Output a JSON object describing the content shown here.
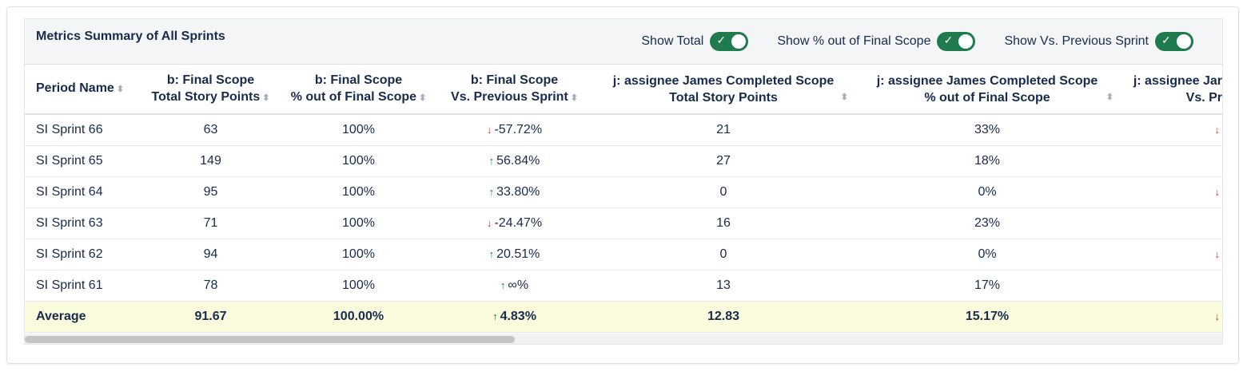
{
  "header": {
    "title": "Metrics Summary of All Sprints",
    "toggles": [
      {
        "label": "Show Total",
        "on": true
      },
      {
        "label": "Show % out of Final Scope",
        "on": true
      },
      {
        "label": "Show Vs. Previous Sprint",
        "on": true
      }
    ]
  },
  "table": {
    "columns": [
      [
        "Period Name"
      ],
      [
        "b: Final Scope",
        "Total Story Points"
      ],
      [
        "b: Final Scope",
        "% out of Final Scope"
      ],
      [
        "b: Final Scope",
        "Vs. Previous Sprint"
      ],
      [
        "j: assignee James Completed Scope",
        "Total Story Points"
      ],
      [
        "j: assignee James Completed Scope",
        "% out of Final Scope"
      ],
      [
        "j: assignee Jar",
        "Vs. Pr"
      ]
    ],
    "rows": [
      [
        "SI Sprint 66",
        "63",
        "100%",
        {
          "text": "-57.72%",
          "trend": "down"
        },
        "21",
        "33%",
        {
          "trend": "down"
        }
      ],
      [
        "SI Sprint 65",
        "149",
        "100%",
        {
          "text": "56.84%",
          "trend": "up"
        },
        "27",
        "18%",
        null
      ],
      [
        "SI Sprint 64",
        "95",
        "100%",
        {
          "text": "33.80%",
          "trend": "up"
        },
        "0",
        "0%",
        {
          "trend": "down"
        }
      ],
      [
        "SI Sprint 63",
        "71",
        "100%",
        {
          "text": "-24.47%",
          "trend": "down"
        },
        "16",
        "23%",
        null
      ],
      [
        "SI Sprint 62",
        "94",
        "100%",
        {
          "text": "20.51%",
          "trend": "up"
        },
        "0",
        "0%",
        {
          "trend": "down"
        }
      ],
      [
        "SI Sprint 61",
        "78",
        "100%",
        {
          "text": "∞%",
          "trend": "up"
        },
        "13",
        "17%",
        null
      ]
    ],
    "footer": [
      "Average",
      "91.67",
      "100.00%",
      {
        "text": "4.83%",
        "trend": "up"
      },
      "12.83",
      "15.17%",
      {
        "trend": "down"
      }
    ]
  }
}
